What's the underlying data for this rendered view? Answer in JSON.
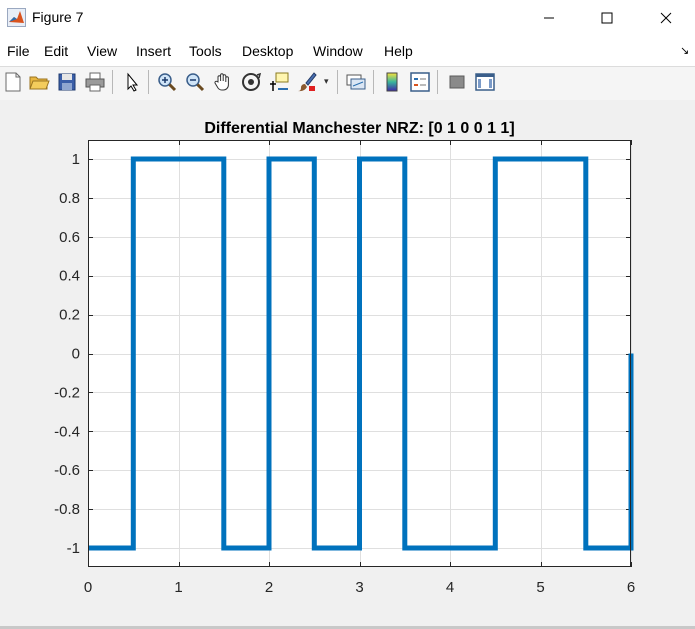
{
  "window": {
    "title": "Figure 7",
    "minimize_glyph": "─",
    "maximize_glyph": "☐",
    "close_glyph": "✕"
  },
  "menu": {
    "items": [
      {
        "label": "File"
      },
      {
        "label": "Edit"
      },
      {
        "label": "View"
      },
      {
        "label": "Insert"
      },
      {
        "label": "Tools"
      },
      {
        "label": "Desktop"
      },
      {
        "label": "Window"
      },
      {
        "label": "Help"
      }
    ]
  },
  "toolbar": {
    "buttons": [
      {
        "icon": "new-figure-icon"
      },
      {
        "icon": "open-file-icon"
      },
      {
        "icon": "save-icon"
      },
      {
        "icon": "print-icon"
      },
      {
        "icon": "select-pointer-icon"
      },
      {
        "icon": "zoom-in-icon"
      },
      {
        "icon": "zoom-out-icon"
      },
      {
        "icon": "pan-icon"
      },
      {
        "icon": "rotate-3d-icon"
      },
      {
        "icon": "data-cursor-icon"
      },
      {
        "icon": "brush-icon"
      },
      {
        "icon": "link-plot-icon"
      },
      {
        "icon": "colorbar-icon"
      },
      {
        "icon": "legend-icon"
      },
      {
        "icon": "hide-plot-tools-icon"
      },
      {
        "icon": "show-plot-tools-icon"
      }
    ]
  },
  "colors": {
    "line": "#0072bd",
    "grid": "#dfdfdf",
    "axes_bg": "#ffffff"
  },
  "chart_data": {
    "type": "line",
    "title": "Differential Manchester NRZ: [0  1  0  0  1  1]",
    "xlabel": "",
    "ylabel": "",
    "xlim": [
      0,
      6
    ],
    "ylim": [
      -1.1,
      1.1
    ],
    "grid": true,
    "xticks": [
      0,
      1,
      2,
      3,
      4,
      5,
      6
    ],
    "xtick_labels": [
      "0",
      "1",
      "2",
      "3",
      "4",
      "5",
      "6"
    ],
    "yticks": [
      1,
      0.8,
      0.6,
      0.4,
      0.2,
      0,
      -0.2,
      -0.4,
      -0.6,
      -0.8,
      -1
    ],
    "ytick_labels": [
      "1",
      "0.8",
      "0.6",
      "0.4",
      "0.2",
      "0",
      "-0.2",
      "-0.4",
      "-0.6",
      "-0.8",
      "-1"
    ],
    "series": [
      {
        "x": [
          0,
          0.5,
          0.5,
          1.5,
          1.5,
          2,
          2,
          2.5,
          2.5,
          3,
          3,
          3.5,
          3.5,
          4.5,
          4.5,
          5.5,
          5.5,
          6,
          6
        ],
        "y": [
          -1,
          -1,
          1,
          1,
          -1,
          -1,
          1,
          1,
          -1,
          -1,
          1,
          1,
          -1,
          -1,
          1,
          1,
          -1,
          -1,
          0
        ]
      }
    ]
  }
}
